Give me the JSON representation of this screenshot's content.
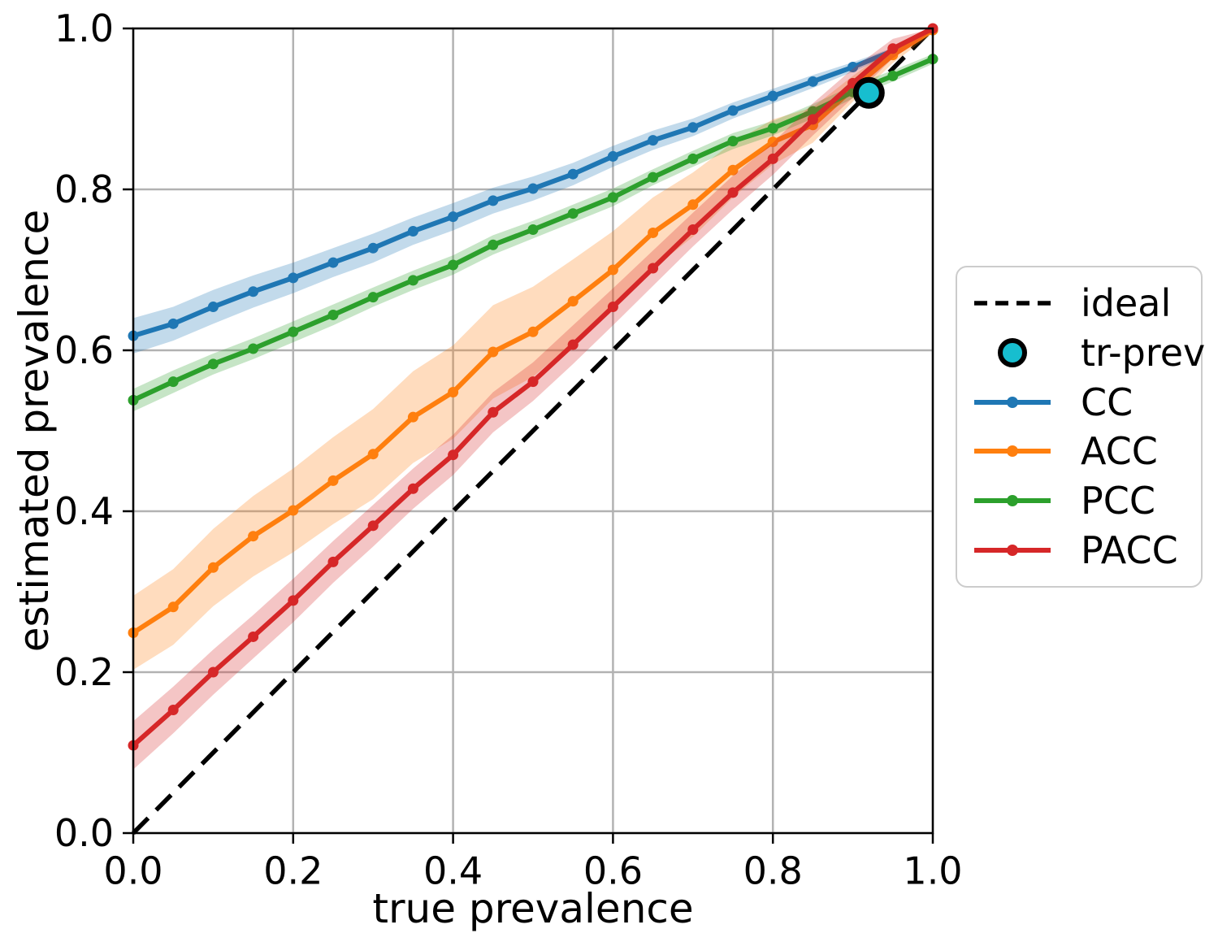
{
  "chart_data": {
    "type": "line",
    "title": "",
    "xlabel": "true prevalence",
    "ylabel": "estimated prevalence",
    "xlim": [
      0.0,
      1.0
    ],
    "ylim": [
      0.0,
      1.0
    ],
    "grid": true,
    "legend_position": "right",
    "xticks": [
      "0.0",
      "0.2",
      "0.4",
      "0.6",
      "0.8",
      "1.0"
    ],
    "yticks": [
      "0.0",
      "0.2",
      "0.4",
      "0.6",
      "0.8",
      "1.0"
    ],
    "x": [
      0.0,
      0.05,
      0.1,
      0.15,
      0.2,
      0.25,
      0.3,
      0.35,
      0.4,
      0.45,
      0.5,
      0.55,
      0.6,
      0.65,
      0.7,
      0.75,
      0.8,
      0.85,
      0.9,
      0.95,
      1.0
    ],
    "series": [
      {
        "name": "CC",
        "color": "#1f77b4",
        "values": [
          0.618,
          0.633,
          0.654,
          0.673,
          0.69,
          0.709,
          0.727,
          0.748,
          0.766,
          0.786,
          0.801,
          0.819,
          0.841,
          0.861,
          0.877,
          0.898,
          0.916,
          0.934,
          0.952,
          0.972,
          0.998
        ],
        "band_halfwidth": [
          0.022,
          0.021,
          0.021,
          0.02,
          0.019,
          0.018,
          0.018,
          0.017,
          0.017,
          0.016,
          0.015,
          0.014,
          0.013,
          0.012,
          0.011,
          0.01,
          0.009,
          0.008,
          0.006,
          0.004,
          0.002
        ]
      },
      {
        "name": "ACC",
        "color": "#ff7f0e",
        "values": [
          0.249,
          0.281,
          0.33,
          0.369,
          0.401,
          0.438,
          0.471,
          0.517,
          0.548,
          0.598,
          0.623,
          0.661,
          0.7,
          0.746,
          0.781,
          0.824,
          0.859,
          0.88,
          0.925,
          0.967,
          0.998
        ],
        "band_halfwidth": [
          0.046,
          0.047,
          0.048,
          0.05,
          0.052,
          0.054,
          0.056,
          0.057,
          0.058,
          0.058,
          0.056,
          0.052,
          0.048,
          0.044,
          0.04,
          0.034,
          0.028,
          0.022,
          0.016,
          0.01,
          0.004
        ]
      },
      {
        "name": "PCC",
        "color": "#2ca02c",
        "values": [
          0.538,
          0.561,
          0.583,
          0.602,
          0.623,
          0.644,
          0.666,
          0.687,
          0.706,
          0.731,
          0.75,
          0.77,
          0.79,
          0.815,
          0.838,
          0.86,
          0.876,
          0.897,
          0.921,
          0.941,
          0.962
        ],
        "band_halfwidth": [
          0.014,
          0.014,
          0.013,
          0.013,
          0.013,
          0.013,
          0.012,
          0.012,
          0.012,
          0.012,
          0.011,
          0.011,
          0.011,
          0.01,
          0.01,
          0.01,
          0.009,
          0.009,
          0.008,
          0.007,
          0.006
        ]
      },
      {
        "name": "PACC",
        "color": "#d62728",
        "values": [
          0.109,
          0.153,
          0.2,
          0.244,
          0.289,
          0.337,
          0.382,
          0.428,
          0.47,
          0.523,
          0.561,
          0.607,
          0.654,
          0.702,
          0.75,
          0.796,
          0.838,
          0.887,
          0.932,
          0.975,
          1.0
        ],
        "band_halfwidth": [
          0.03,
          0.029,
          0.028,
          0.027,
          0.027,
          0.026,
          0.026,
          0.025,
          0.025,
          0.025,
          0.024,
          0.024,
          0.023,
          0.022,
          0.021,
          0.021,
          0.02,
          0.02,
          0.018,
          0.012,
          0.004
        ]
      }
    ],
    "ideal": {
      "label": "ideal",
      "color": "#000000",
      "x": [
        0.0,
        1.0
      ],
      "y": [
        0.0,
        1.0
      ],
      "style": "dashed"
    },
    "tr_prev": {
      "label": "tr-prev",
      "color": "#17becf",
      "x": 0.92,
      "y": 0.92
    },
    "legend": {
      "items": [
        {
          "label": "ideal"
        },
        {
          "label": "tr-prev"
        },
        {
          "label": "CC"
        },
        {
          "label": "ACC"
        },
        {
          "label": "PCC"
        },
        {
          "label": "PACC"
        }
      ]
    }
  }
}
